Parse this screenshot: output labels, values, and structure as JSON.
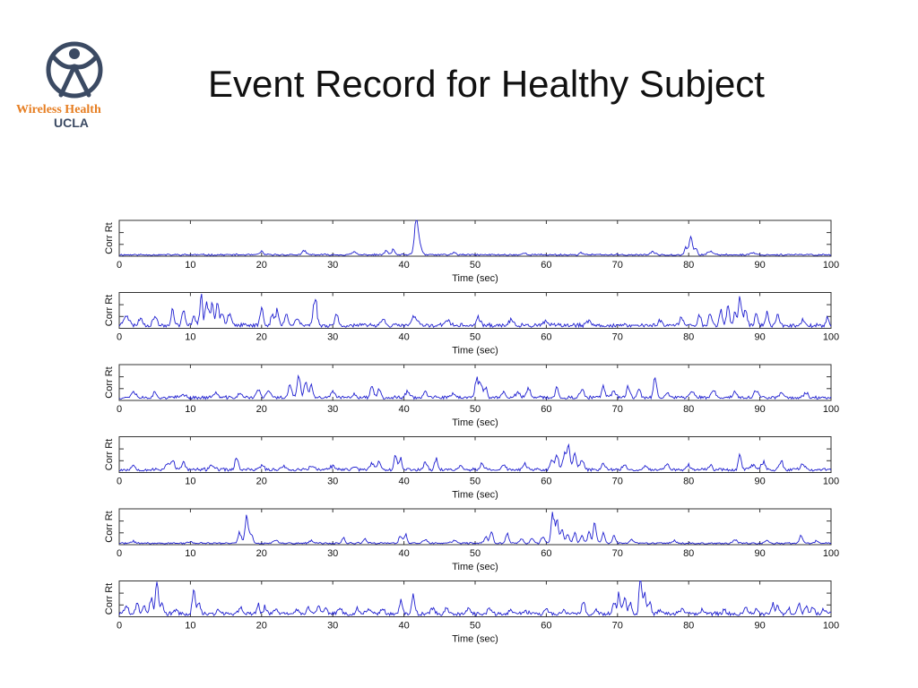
{
  "slide": {
    "title": "Event Record for Healthy Subject",
    "logo_text_line1": "Wireless Health",
    "logo_text_line2": "UCLA",
    "logo_colors": {
      "figure": "#3b4a63",
      "text": "#e67e22"
    }
  },
  "chart_style": {
    "line_color": "#1f1fd0",
    "axis_color": "#333333"
  },
  "chart_data": [
    {
      "type": "line",
      "xlabel": "Time (sec)",
      "ylabel": "Corr Rt",
      "xlim": [
        0,
        100
      ],
      "xticks": [
        0,
        10,
        20,
        30,
        40,
        50,
        60,
        70,
        80,
        90,
        100
      ],
      "ylim": [
        0,
        1
      ],
      "baseline": 0.04,
      "noise": 0.02,
      "seed": 11,
      "peaks": [
        [
          20,
          0.1,
          0.3
        ],
        [
          26,
          0.1,
          0.4
        ],
        [
          33,
          0.08,
          0.4
        ],
        [
          37.5,
          0.12,
          0.3
        ],
        [
          38.5,
          0.14,
          0.3
        ],
        [
          41.7,
          0.85,
          0.35
        ],
        [
          42.2,
          0.3,
          0.4
        ],
        [
          47,
          0.06,
          0.4
        ],
        [
          57,
          0.05,
          0.4
        ],
        [
          65,
          0.06,
          0.4
        ],
        [
          75,
          0.07,
          0.5
        ],
        [
          79.6,
          0.2,
          0.3
        ],
        [
          80.3,
          0.45,
          0.35
        ],
        [
          81,
          0.15,
          0.3
        ],
        [
          83,
          0.1,
          0.5
        ],
        [
          89,
          0.06,
          0.5
        ]
      ]
    },
    {
      "type": "line",
      "xlabel": "Time (sec)",
      "ylabel": "Corr Rt",
      "xlim": [
        0,
        100
      ],
      "xticks": [
        0,
        10,
        20,
        30,
        40,
        50,
        60,
        70,
        80,
        90,
        100
      ],
      "ylim": [
        0,
        1
      ],
      "baseline": 0.08,
      "noise": 0.05,
      "seed": 23,
      "peaks": [
        [
          1,
          0.3,
          0.5
        ],
        [
          3,
          0.2,
          0.4
        ],
        [
          5,
          0.25,
          0.4
        ],
        [
          7.5,
          0.45,
          0.3
        ],
        [
          9,
          0.4,
          0.3
        ],
        [
          10.5,
          0.3,
          0.3
        ],
        [
          11.5,
          0.9,
          0.25
        ],
        [
          12.3,
          0.7,
          0.3
        ],
        [
          13,
          0.55,
          0.3
        ],
        [
          13.8,
          0.6,
          0.3
        ],
        [
          14.5,
          0.4,
          0.3
        ],
        [
          15.5,
          0.35,
          0.4
        ],
        [
          20,
          0.45,
          0.35
        ],
        [
          21.5,
          0.3,
          0.3
        ],
        [
          22.2,
          0.4,
          0.3
        ],
        [
          23.5,
          0.4,
          0.3
        ],
        [
          25,
          0.2,
          0.4
        ],
        [
          27.5,
          0.8,
          0.35
        ],
        [
          30.5,
          0.35,
          0.3
        ],
        [
          37,
          0.2,
          0.4
        ],
        [
          41.5,
          0.25,
          0.5
        ],
        [
          46,
          0.15,
          0.5
        ],
        [
          50.5,
          0.2,
          0.4
        ],
        [
          55,
          0.15,
          0.4
        ],
        [
          60,
          0.12,
          0.4
        ],
        [
          66,
          0.12,
          0.4
        ],
        [
          76,
          0.15,
          0.4
        ],
        [
          79,
          0.2,
          0.4
        ],
        [
          81.5,
          0.3,
          0.3
        ],
        [
          83,
          0.35,
          0.3
        ],
        [
          84.5,
          0.4,
          0.3
        ],
        [
          85.5,
          0.5,
          0.3
        ],
        [
          86.5,
          0.35,
          0.3
        ],
        [
          87.2,
          0.85,
          0.3
        ],
        [
          88,
          0.45,
          0.3
        ],
        [
          89.5,
          0.35,
          0.3
        ],
        [
          91,
          0.3,
          0.3
        ],
        [
          92.5,
          0.3,
          0.3
        ],
        [
          96,
          0.15,
          0.4
        ],
        [
          99.5,
          0.2,
          0.3
        ]
      ]
    },
    {
      "type": "line",
      "xlabel": "Time (sec)",
      "ylabel": "Corr Rt",
      "xlim": [
        0,
        100
      ],
      "xticks": [
        0,
        10,
        20,
        30,
        40,
        50,
        60,
        70,
        80,
        90,
        100
      ],
      "ylim": [
        0,
        1
      ],
      "baseline": 0.08,
      "noise": 0.04,
      "seed": 37,
      "peaks": [
        [
          2,
          0.15,
          0.5
        ],
        [
          5,
          0.12,
          0.4
        ],
        [
          9,
          0.1,
          0.4
        ],
        [
          13.5,
          0.15,
          0.4
        ],
        [
          17,
          0.12,
          0.4
        ],
        [
          19.5,
          0.2,
          0.4
        ],
        [
          21,
          0.2,
          0.4
        ],
        [
          24,
          0.35,
          0.35
        ],
        [
          25.2,
          0.65,
          0.3
        ],
        [
          26.2,
          0.45,
          0.3
        ],
        [
          27,
          0.3,
          0.3
        ],
        [
          30,
          0.15,
          0.4
        ],
        [
          33,
          0.1,
          0.4
        ],
        [
          35.5,
          0.35,
          0.3
        ],
        [
          36.5,
          0.3,
          0.3
        ],
        [
          40.5,
          0.2,
          0.4
        ],
        [
          43,
          0.15,
          0.4
        ],
        [
          47,
          0.12,
          0.4
        ],
        [
          50.2,
          0.5,
          0.3
        ],
        [
          50.8,
          0.45,
          0.3
        ],
        [
          51.5,
          0.3,
          0.3
        ],
        [
          54,
          0.15,
          0.4
        ],
        [
          56,
          0.15,
          0.4
        ],
        [
          57.5,
          0.3,
          0.3
        ],
        [
          61.5,
          0.25,
          0.3
        ],
        [
          65,
          0.2,
          0.4
        ],
        [
          68,
          0.3,
          0.3
        ],
        [
          69.5,
          0.2,
          0.4
        ],
        [
          71.5,
          0.35,
          0.3
        ],
        [
          73,
          0.3,
          0.3
        ],
        [
          75.3,
          0.6,
          0.3
        ],
        [
          77,
          0.15,
          0.4
        ],
        [
          80.5,
          0.2,
          0.4
        ],
        [
          83.5,
          0.2,
          0.4
        ],
        [
          86.5,
          0.15,
          0.4
        ],
        [
          89.5,
          0.2,
          0.4
        ],
        [
          93,
          0.15,
          0.4
        ],
        [
          96.5,
          0.12,
          0.4
        ]
      ]
    },
    {
      "type": "line",
      "xlabel": "Time (sec)",
      "ylabel": "Corr Rt",
      "xlim": [
        0,
        100
      ],
      "xticks": [
        0,
        10,
        20,
        30,
        40,
        50,
        60,
        70,
        80,
        90,
        100
      ],
      "ylim": [
        0,
        1
      ],
      "baseline": 0.08,
      "noise": 0.04,
      "seed": 53,
      "peaks": [
        [
          2,
          0.12,
          0.4
        ],
        [
          6.8,
          0.2,
          0.4
        ],
        [
          7.5,
          0.25,
          0.35
        ],
        [
          9,
          0.18,
          0.4
        ],
        [
          13,
          0.15,
          0.4
        ],
        [
          16.5,
          0.35,
          0.3
        ],
        [
          20,
          0.12,
          0.4
        ],
        [
          23,
          0.12,
          0.4
        ],
        [
          27,
          0.12,
          0.4
        ],
        [
          30,
          0.1,
          0.4
        ],
        [
          33,
          0.1,
          0.4
        ],
        [
          35.5,
          0.2,
          0.4
        ],
        [
          36.5,
          0.25,
          0.3
        ],
        [
          38.8,
          0.45,
          0.3
        ],
        [
          39.5,
          0.3,
          0.3
        ],
        [
          43,
          0.2,
          0.4
        ],
        [
          44.5,
          0.3,
          0.3
        ],
        [
          48,
          0.12,
          0.4
        ],
        [
          51,
          0.15,
          0.4
        ],
        [
          54,
          0.12,
          0.4
        ],
        [
          57,
          0.15,
          0.4
        ],
        [
          60.8,
          0.3,
          0.3
        ],
        [
          61.5,
          0.45,
          0.3
        ],
        [
          62.5,
          0.4,
          0.3
        ],
        [
          63.1,
          0.7,
          0.3
        ],
        [
          64,
          0.45,
          0.3
        ],
        [
          65,
          0.25,
          0.4
        ],
        [
          68,
          0.15,
          0.4
        ],
        [
          71,
          0.15,
          0.4
        ],
        [
          74,
          0.12,
          0.4
        ],
        [
          77,
          0.15,
          0.4
        ],
        [
          80,
          0.12,
          0.4
        ],
        [
          83,
          0.1,
          0.4
        ],
        [
          87.2,
          0.45,
          0.3
        ],
        [
          89,
          0.15,
          0.4
        ],
        [
          90.5,
          0.2,
          0.4
        ],
        [
          93,
          0.2,
          0.4
        ],
        [
          96,
          0.12,
          0.4
        ]
      ]
    },
    {
      "type": "line",
      "xlabel": "Time (sec)",
      "ylabel": "Corr Rt",
      "xlim": [
        0,
        100
      ],
      "xticks": [
        0,
        10,
        20,
        30,
        40,
        50,
        60,
        70,
        80,
        90,
        100
      ],
      "ylim": [
        0,
        1
      ],
      "baseline": 0.04,
      "noise": 0.02,
      "seed": 71,
      "peaks": [
        [
          2,
          0.05,
          0.4
        ],
        [
          10,
          0.04,
          0.4
        ],
        [
          16.9,
          0.3,
          0.3
        ],
        [
          17.9,
          0.72,
          0.35
        ],
        [
          18.6,
          0.25,
          0.3
        ],
        [
          22,
          0.08,
          0.4
        ],
        [
          27,
          0.06,
          0.4
        ],
        [
          31.5,
          0.15,
          0.3
        ],
        [
          34.5,
          0.12,
          0.3
        ],
        [
          39.5,
          0.2,
          0.3
        ],
        [
          40.2,
          0.25,
          0.3
        ],
        [
          43,
          0.1,
          0.4
        ],
        [
          47,
          0.08,
          0.4
        ],
        [
          51.5,
          0.2,
          0.3
        ],
        [
          52.3,
          0.35,
          0.3
        ],
        [
          54.5,
          0.25,
          0.3
        ],
        [
          56.5,
          0.12,
          0.4
        ],
        [
          58,
          0.15,
          0.3
        ],
        [
          59.5,
          0.2,
          0.3
        ],
        [
          60.9,
          0.85,
          0.3
        ],
        [
          61.5,
          0.6,
          0.3
        ],
        [
          62.2,
          0.4,
          0.3
        ],
        [
          63,
          0.25,
          0.3
        ],
        [
          64,
          0.3,
          0.3
        ],
        [
          65,
          0.2,
          0.3
        ],
        [
          66,
          0.3,
          0.3
        ],
        [
          66.8,
          0.55,
          0.3
        ],
        [
          68,
          0.25,
          0.3
        ],
        [
          69.5,
          0.2,
          0.3
        ],
        [
          72,
          0.08,
          0.4
        ],
        [
          78,
          0.06,
          0.4
        ],
        [
          86.5,
          0.1,
          0.4
        ],
        [
          91,
          0.08,
          0.4
        ],
        [
          95.8,
          0.25,
          0.3
        ],
        [
          98,
          0.06,
          0.4
        ]
      ]
    },
    {
      "type": "line",
      "xlabel": "Time (sec)",
      "ylabel": "Corr Rt",
      "xlim": [
        0,
        100
      ],
      "xticks": [
        0,
        10,
        20,
        30,
        40,
        50,
        60,
        70,
        80,
        90,
        100
      ],
      "ylim": [
        0,
        1
      ],
      "baseline": 0.08,
      "noise": 0.05,
      "seed": 89,
      "peaks": [
        [
          1,
          0.2,
          0.4
        ],
        [
          2.5,
          0.3,
          0.3
        ],
        [
          3.5,
          0.25,
          0.3
        ],
        [
          4.5,
          0.45,
          0.3
        ],
        [
          5.3,
          1.0,
          0.25
        ],
        [
          6,
          0.3,
          0.3
        ],
        [
          8,
          0.15,
          0.3
        ],
        [
          10.5,
          0.65,
          0.3
        ],
        [
          11.2,
          0.3,
          0.3
        ],
        [
          14,
          0.12,
          0.4
        ],
        [
          17,
          0.15,
          0.4
        ],
        [
          19.5,
          0.25,
          0.3
        ],
        [
          20.5,
          0.2,
          0.3
        ],
        [
          22,
          0.15,
          0.4
        ],
        [
          25,
          0.15,
          0.4
        ],
        [
          26.5,
          0.2,
          0.3
        ],
        [
          28,
          0.25,
          0.3
        ],
        [
          29,
          0.2,
          0.3
        ],
        [
          31,
          0.15,
          0.4
        ],
        [
          33.5,
          0.15,
          0.3
        ],
        [
          35,
          0.15,
          0.4
        ],
        [
          37,
          0.15,
          0.3
        ],
        [
          39.6,
          0.4,
          0.3
        ],
        [
          41.3,
          0.6,
          0.3
        ],
        [
          44,
          0.12,
          0.4
        ],
        [
          46,
          0.2,
          0.3
        ],
        [
          49,
          0.12,
          0.4
        ],
        [
          52,
          0.15,
          0.3
        ],
        [
          55,
          0.15,
          0.3
        ],
        [
          57,
          0.1,
          0.4
        ],
        [
          60,
          0.12,
          0.4
        ],
        [
          62.5,
          0.1,
          0.4
        ],
        [
          65.2,
          0.35,
          0.3
        ],
        [
          67,
          0.15,
          0.3
        ],
        [
          69.5,
          0.3,
          0.3
        ],
        [
          70.2,
          0.55,
          0.3
        ],
        [
          71,
          0.45,
          0.3
        ],
        [
          71.8,
          0.3,
          0.3
        ],
        [
          73.2,
          1.0,
          0.25
        ],
        [
          73.8,
          0.55,
          0.3
        ],
        [
          74.5,
          0.35,
          0.3
        ],
        [
          76,
          0.15,
          0.3
        ],
        [
          79,
          0.12,
          0.4
        ],
        [
          82,
          0.1,
          0.4
        ],
        [
          85,
          0.15,
          0.3
        ],
        [
          88,
          0.15,
          0.3
        ],
        [
          89.5,
          0.15,
          0.3
        ],
        [
          91.8,
          0.3,
          0.3
        ],
        [
          92.5,
          0.25,
          0.3
        ],
        [
          94,
          0.15,
          0.4
        ],
        [
          95.5,
          0.3,
          0.3
        ],
        [
          96.5,
          0.25,
          0.3
        ],
        [
          97.5,
          0.2,
          0.3
        ],
        [
          99,
          0.12,
          0.4
        ]
      ]
    }
  ]
}
